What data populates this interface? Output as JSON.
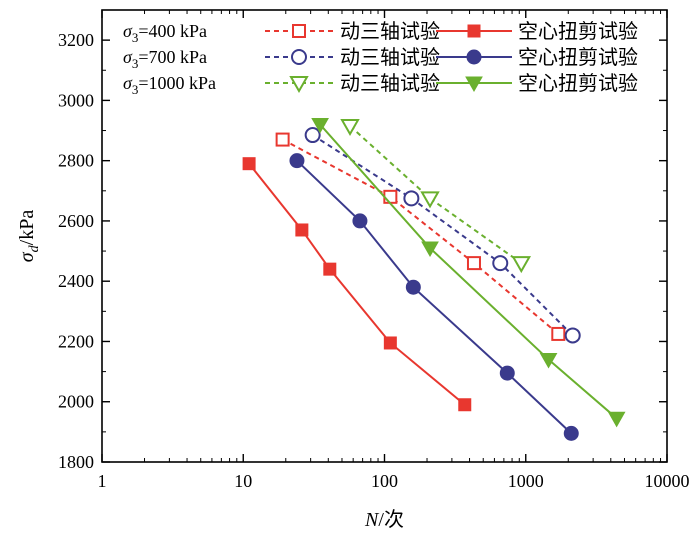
{
  "chart_data": {
    "type": "scatter",
    "x_scale": "log",
    "xlabel": "N/次",
    "ylabel": "σd/kPa",
    "xlim": [
      1,
      10000
    ],
    "ylim": [
      1800,
      3300
    ],
    "x_ticks": [
      1,
      10,
      100,
      1000,
      10000
    ],
    "x_tick_labels": [
      "1",
      "10",
      "100",
      "1000",
      "10000"
    ],
    "y_ticks": [
      1800,
      2000,
      2200,
      2400,
      2600,
      2800,
      3000,
      3200
    ],
    "y_tick_labels": [
      "1800",
      "2000",
      "2200",
      "2400",
      "2600",
      "2800",
      "3000",
      "3200"
    ],
    "legend_position": "top-left",
    "legend_rows": [
      {
        "condition": "σ3=400 kPa",
        "label_a": "动三轴试验",
        "label_b": "空心扭剪试验"
      },
      {
        "condition": "σ3=700 kPa",
        "label_a": "动三轴试验",
        "label_b": "空心扭剪试验"
      },
      {
        "condition": "σ3=1000 kPa",
        "label_a": "动三轴试验",
        "label_b": "空心扭剪试验"
      }
    ],
    "series": [
      {
        "name": "动三轴试验",
        "legend_row": 0,
        "color": "#e8372f",
        "marker": "square-open",
        "line": "dashed",
        "x": [
          19,
          110,
          430,
          1700
        ],
        "y": [
          2870,
          2680,
          2460,
          2225
        ]
      },
      {
        "name": "空心扭剪试验",
        "legend_row": 0,
        "color": "#e8372f",
        "marker": "square-filled",
        "line": "solid",
        "x": [
          11,
          26,
          41,
          110,
          370
        ],
        "y": [
          2790,
          2570,
          2440,
          2195,
          1990
        ]
      },
      {
        "name": "动三轴试验",
        "legend_row": 1,
        "color": "#3a3a8c",
        "marker": "circle-open",
        "line": "dashed",
        "x": [
          31,
          155,
          660,
          2150
        ],
        "y": [
          2885,
          2675,
          2460,
          2220
        ]
      },
      {
        "name": "空心扭剪试验",
        "legend_row": 1,
        "color": "#3a3a8c",
        "marker": "circle-filled",
        "line": "solid",
        "x": [
          24,
          67,
          160,
          740,
          2100
        ],
        "y": [
          2800,
          2600,
          2380,
          2095,
          1895
        ]
      },
      {
        "name": "动三轴试验",
        "legend_row": 2,
        "color": "#6ab02e",
        "marker": "triangle-open",
        "line": "dashed",
        "x": [
          57,
          210,
          930
        ],
        "y": [
          2915,
          2675,
          2460
        ]
      },
      {
        "name": "空心扭剪试验",
        "legend_row": 2,
        "color": "#6ab02e",
        "marker": "triangle-filled",
        "line": "solid",
        "x": [
          35,
          210,
          1450,
          4400
        ],
        "y": [
          2920,
          2510,
          2140,
          1945
        ]
      }
    ]
  }
}
